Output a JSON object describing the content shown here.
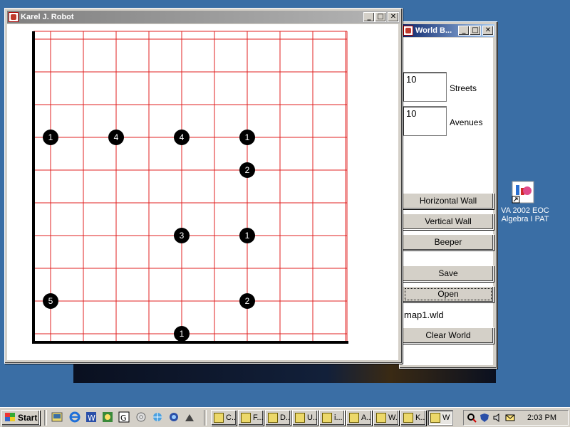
{
  "karel_window": {
    "title": "Karel J. Robot",
    "buttons": {
      "minimize": "_",
      "maximize": "□",
      "close": "✕"
    }
  },
  "world_window": {
    "title": "World B...",
    "streets_value": "10",
    "streets_label": "Streets",
    "avenues_value": "10",
    "avenues_label": "Avenues",
    "horizontal_wall_label": "Horizontal Wall",
    "vertical_wall_label": "Vertical Wall",
    "beeper_label": "Beeper",
    "save_label": "Save",
    "open_label": "Open",
    "filename": "map1.wld",
    "clear_world_label": "Clear World"
  },
  "world": {
    "streets": 10,
    "avenues": 10,
    "grid_color": "#e02020",
    "beepers": [
      {
        "street": 7,
        "avenue": 1,
        "count": "1"
      },
      {
        "street": 7,
        "avenue": 3,
        "count": "4"
      },
      {
        "street": 7,
        "avenue": 5,
        "count": "4"
      },
      {
        "street": 7,
        "avenue": 7,
        "count": "1"
      },
      {
        "street": 6,
        "avenue": 7,
        "count": "2"
      },
      {
        "street": 4,
        "avenue": 5,
        "count": "3"
      },
      {
        "street": 4,
        "avenue": 7,
        "count": "1"
      },
      {
        "street": 2,
        "avenue": 1,
        "count": "5"
      },
      {
        "street": 2,
        "avenue": 7,
        "count": "2"
      },
      {
        "street": 1,
        "avenue": 5,
        "count": "1"
      }
    ]
  },
  "desktop_icon": {
    "label_line1": "VA 2002 EOC",
    "label_line2": "Algebra I PAT"
  },
  "taskbar": {
    "start_label": "Start",
    "tasks": [
      {
        "label": "C..."
      },
      {
        "label": "F..."
      },
      {
        "label": "D..."
      },
      {
        "label": "U..."
      },
      {
        "label": "i..."
      },
      {
        "label": "A..."
      },
      {
        "label": "W..."
      },
      {
        "label": "K..."
      },
      {
        "label": "W"
      }
    ],
    "clock": "2:03 PM"
  }
}
